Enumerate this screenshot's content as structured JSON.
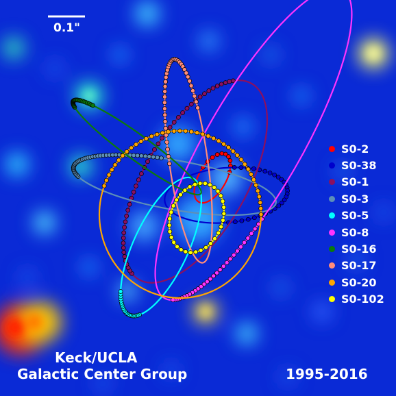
{
  "scale_bar": {
    "label": "0.1\""
  },
  "credit": {
    "line1": "Keck/UCLA",
    "line2": "Galactic Center Group"
  },
  "date_range": "1995-2016",
  "stars": [
    {
      "name": "S0-2",
      "color": "#ff0000"
    },
    {
      "name": "S0-38",
      "color": "#0000cc"
    },
    {
      "name": "S0-1",
      "color": "#8b1060"
    },
    {
      "name": "S0-3",
      "color": "#5d8fb8"
    },
    {
      "name": "S0-5",
      "color": "#00ffff"
    },
    {
      "name": "S0-8",
      "color": "#ff33ff"
    },
    {
      "name": "S0-16",
      "color": "#0b7a0b"
    },
    {
      "name": "S0-17",
      "color": "#ff8c7a"
    },
    {
      "name": "S0-20",
      "color": "#ffa500"
    },
    {
      "name": "S0-102",
      "color": "#ffff00"
    }
  ]
}
